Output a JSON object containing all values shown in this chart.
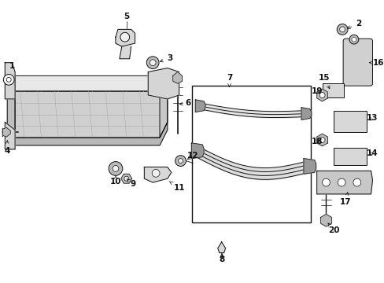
{
  "background_color": "#ffffff",
  "fig_width": 4.89,
  "fig_height": 3.6,
  "dpi": 100,
  "dark": "#111111",
  "gray_fill": "#d8d8d8",
  "gray_mid": "#bbbbbb",
  "gray_dark": "#999999",
  "line_width": 0.7
}
